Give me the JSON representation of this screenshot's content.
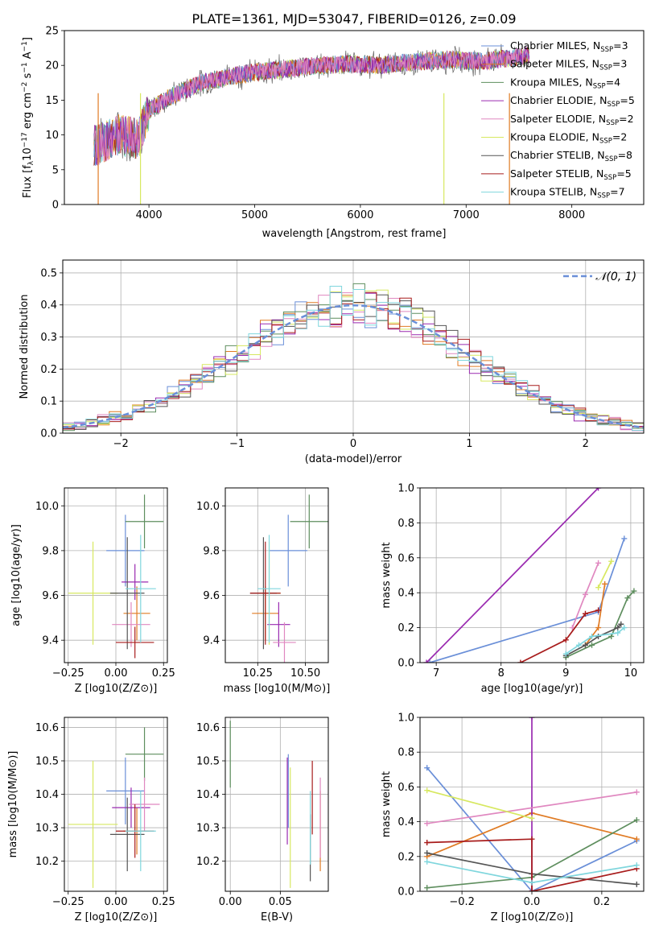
{
  "figure_title": "PLATE=1361, MJD=53047, FIBERID=0126, z=0.09",
  "colors": [
    "#6a8fd8",
    "#e07b24",
    "#5e8e5e",
    "#9a2ab0",
    "#e088c0",
    "#d7e860",
    "#555555",
    "#a81c1c",
    "#7fd6dd"
  ],
  "chart_data": [
    {
      "id": "spectrum",
      "type": "line",
      "title": "PLATE=1361, MJD=53047, FIBERID=0126, z=0.09",
      "xlabel": "wavelength [Angstrom, rest frame]",
      "ylabel_parts": [
        "Flux [f",
        "λ",
        "10",
        "−17",
        " erg cm",
        "−2",
        " s",
        "−1",
        " A",
        "−1",
        "]"
      ],
      "xlim": [
        3200,
        8680
      ],
      "ylim": [
        0,
        25
      ],
      "xticks": [
        4000,
        5000,
        6000,
        7000,
        8000
      ],
      "xtick_labels": [
        "4000",
        "5000",
        "6000",
        "7000",
        "8000"
      ],
      "yticks": [
        0,
        5,
        10,
        15,
        20,
        25
      ],
      "ytick_labels": [
        "0",
        "5",
        "10",
        "15",
        "20",
        "25"
      ],
      "grid": false,
      "legend_placement": "top-right",
      "continuum_x": [
        3500,
        3700,
        3900,
        4000,
        4200,
        4500,
        4800,
        5000,
        5300,
        5600,
        5900,
        6200,
        6500,
        6800,
        7100,
        7400,
        7600
      ],
      "continuum_y": [
        8.5,
        10,
        9.5,
        13.5,
        15.5,
        17.5,
        18.5,
        19,
        19.5,
        20,
        20.2,
        20,
        20.5,
        20.8,
        20.6,
        21,
        21.5
      ],
      "series": [
        {
          "label_main": "Chabrier MILES, N",
          "label_sub": "SSP",
          "label_tail": "=3"
        },
        {
          "label_main": "Salpeter MILES, N",
          "label_sub": "SSP",
          "label_tail": "=3"
        },
        {
          "label_main": "Kroupa MILES, N",
          "label_sub": "SSP",
          "label_tail": "=4"
        },
        {
          "label_main": "Chabrier ELODIE, N",
          "label_sub": "SSP",
          "label_tail": "=5"
        },
        {
          "label_main": "Salpeter ELODIE, N",
          "label_sub": "SSP",
          "label_tail": "=2"
        },
        {
          "label_main": "Kroupa ELODIE, N",
          "label_sub": "SSP",
          "label_tail": "=2"
        },
        {
          "label_main": "Chabrier STELIB, N",
          "label_sub": "SSP",
          "label_tail": "=8"
        },
        {
          "label_main": "Salpeter STELIB, N",
          "label_sub": "SSP",
          "label_tail": "=5"
        },
        {
          "label_main": "Kroupa STELIB, N",
          "label_sub": "SSP",
          "label_tail": "=7"
        }
      ]
    },
    {
      "id": "residuals",
      "type": "bar",
      "xlabel": "(data-model)/error",
      "ylabel": "Normed distribution",
      "xlim": [
        -2.5,
        2.5
      ],
      "ylim": [
        0,
        0.54
      ],
      "xticks": [
        -2,
        -1,
        0,
        1,
        2
      ],
      "xtick_labels": [
        "−2",
        "−1",
        "0",
        "1",
        "2"
      ],
      "yticks": [
        0,
        0.1,
        0.2,
        0.3,
        0.4,
        0.5
      ],
      "ytick_labels": [
        "0.0",
        "0.1",
        "0.2",
        "0.3",
        "0.4",
        "0.5"
      ],
      "grid": true,
      "bin_width": 0.1,
      "legend_placement": "top-right",
      "legend_label": "𝒩(0, 1)"
    },
    {
      "id": "age_vs_Z",
      "type": "scatter",
      "xlabel": "Z [log10(Z/Z⊙)]",
      "ylabel": "age  [log10(age/yr)]",
      "xlim": [
        -0.27,
        0.27
      ],
      "ylim": [
        9.3,
        10.08
      ],
      "xticks": [
        -0.25,
        0,
        0.25
      ],
      "xtick_labels": [
        "−0.25",
        "0.00",
        "0.25"
      ],
      "yticks": [
        9.4,
        9.6,
        9.8,
        10.0
      ],
      "ytick_labels": [
        "9.4",
        "9.6",
        "9.8",
        "10.0"
      ],
      "grid": true,
      "points": [
        {
          "x": 0.05,
          "y": 9.8,
          "xerr": 0.1,
          "yerr": 0.16
        },
        {
          "x": 0.11,
          "y": 9.52,
          "xerr": 0.07,
          "yerr": 0.12
        },
        {
          "x": 0.15,
          "y": 9.93,
          "xerr": 0.1,
          "yerr": 0.12
        },
        {
          "x": 0.1,
          "y": 9.66,
          "xerr": 0.07,
          "yerr": 0.08
        },
        {
          "x": 0.08,
          "y": 9.47,
          "xerr": 0.1,
          "yerr": 0.1
        },
        {
          "x": -0.12,
          "y": 9.61,
          "xerr": 0.13,
          "yerr": 0.23
        },
        {
          "x": 0.06,
          "y": 9.61,
          "xerr": 0.09,
          "yerr": 0.25
        },
        {
          "x": 0.1,
          "y": 9.39,
          "xerr": 0.1,
          "yerr": 0.07
        },
        {
          "x": 0.13,
          "y": 9.63,
          "xerr": 0.08,
          "yerr": 0.24
        }
      ]
    },
    {
      "id": "age_vs_mass",
      "type": "scatter",
      "xlabel": "mass [log10(M/M⊙)]",
      "xlim": [
        10.08,
        10.62
      ],
      "ylim": [
        9.3,
        10.08
      ],
      "xticks": [
        10.25,
        10.5
      ],
      "xtick_labels": [
        "10.25",
        "10.50"
      ],
      "yticks": [
        9.4,
        9.6,
        9.8,
        10.0
      ],
      "ytick_labels": [
        "9.4",
        "9.6",
        "9.8",
        "10.0"
      ],
      "grid": true,
      "points": [
        {
          "x": 10.41,
          "y": 9.8,
          "xerr": 0.1,
          "yerr": 0.16
        },
        {
          "x": 10.29,
          "y": 9.52,
          "xerr": 0.07,
          "yerr": 0.12
        },
        {
          "x": 10.52,
          "y": 9.93,
          "xerr": 0.1,
          "yerr": 0.12
        },
        {
          "x": 10.36,
          "y": 9.47,
          "xerr": 0.06,
          "yerr": 0.1
        },
        {
          "x": 10.39,
          "y": 9.39,
          "xerr": 0.06,
          "yerr": 0.09
        },
        {
          "x": 10.31,
          "y": 9.61,
          "xerr": 0.06,
          "yerr": 0.23
        },
        {
          "x": 10.28,
          "y": 9.61,
          "xerr": 0.07,
          "yerr": 0.25
        },
        {
          "x": 10.29,
          "y": 9.61,
          "xerr": 0.08,
          "yerr": 0.23
        },
        {
          "x": 10.31,
          "y": 9.63,
          "xerr": 0.06,
          "yerr": 0.24
        }
      ]
    },
    {
      "id": "weight_vs_age",
      "type": "line",
      "xlabel": "age  [log10(age/yr)]",
      "ylabel": "mass weight",
      "xlim": [
        6.75,
        10.2
      ],
      "ylim": [
        0,
        1
      ],
      "xticks": [
        7,
        8,
        9,
        10
      ],
      "xtick_labels": [
        "7",
        "8",
        "9",
        "10"
      ],
      "yticks": [
        0,
        0.2,
        0.4,
        0.6,
        0.8,
        1.0
      ],
      "ytick_labels": [
        "0.0",
        "0.2",
        "0.4",
        "0.6",
        "0.8",
        "1.0"
      ],
      "grid": true,
      "series": [
        {
          "x": [
            6.9,
            9.5,
            9.9
          ],
          "y": [
            0.0,
            0.29,
            0.71
          ]
        },
        {
          "x": [
            9.3,
            9.5,
            9.6
          ],
          "y": [
            0.1,
            0.2,
            0.45
          ]
        },
        {
          "x": [
            9.0,
            9.4,
            9.7,
            9.95,
            10.05
          ],
          "y": [
            0.03,
            0.1,
            0.15,
            0.37,
            0.41
          ]
        },
        {
          "x": [
            6.85,
            9.5
          ],
          "y": [
            0.0,
            1.0
          ]
        },
        {
          "x": [
            9.1,
            9.3,
            9.5
          ],
          "y": [
            0.2,
            0.39,
            0.57
          ]
        },
        {
          "x": [
            9.5,
            9.7
          ],
          "y": [
            0.43,
            0.58
          ]
        },
        {
          "x": [
            9.0,
            9.3,
            9.5,
            9.8,
            9.85
          ],
          "y": [
            0.04,
            0.1,
            0.15,
            0.2,
            0.22
          ]
        },
        {
          "x": [
            8.3,
            9.0,
            9.3,
            9.5
          ],
          "y": [
            0.0,
            0.13,
            0.28,
            0.3
          ]
        },
        {
          "x": [
            9.0,
            9.2,
            9.4,
            9.8,
            9.9
          ],
          "y": [
            0.05,
            0.1,
            0.15,
            0.17,
            0.2
          ]
        }
      ]
    },
    {
      "id": "mass_vs_Z",
      "type": "scatter",
      "xlabel": "Z [log10(Z/Z⊙)]",
      "ylabel": "mass [log10(M/M⊙)]",
      "xlim": [
        -0.27,
        0.27
      ],
      "ylim": [
        10.11,
        10.63
      ],
      "xticks": [
        -0.25,
        0,
        0.25
      ],
      "xtick_labels": [
        "−0.25",
        "0.00",
        "0.25"
      ],
      "yticks": [
        10.2,
        10.3,
        10.4,
        10.5,
        10.6
      ],
      "ytick_labels": [
        "10.2",
        "10.3",
        "10.4",
        "10.5",
        "10.6"
      ],
      "grid": true,
      "points": [
        {
          "x": 0.05,
          "y": 10.41,
          "xerr": 0.1,
          "yerr": 0.1
        },
        {
          "x": 0.11,
          "y": 10.29,
          "xerr": 0.07,
          "yerr": 0.07
        },
        {
          "x": 0.15,
          "y": 10.52,
          "xerr": 0.1,
          "yerr": 0.08
        },
        {
          "x": 0.08,
          "y": 10.36,
          "xerr": 0.1,
          "yerr": 0.06
        },
        {
          "x": 0.15,
          "y": 10.37,
          "xerr": 0.08,
          "yerr": 0.08
        },
        {
          "x": -0.12,
          "y": 10.31,
          "xerr": 0.13,
          "yerr": 0.19
        },
        {
          "x": 0.06,
          "y": 10.28,
          "xerr": 0.09,
          "yerr": 0.11
        },
        {
          "x": 0.1,
          "y": 10.29,
          "xerr": 0.1,
          "yerr": 0.08
        },
        {
          "x": 0.13,
          "y": 10.29,
          "xerr": 0.08,
          "yerr": 0.12
        }
      ]
    },
    {
      "id": "mass_vs_ebv",
      "type": "scatter",
      "xlabel": "E(B-V)",
      "xlim": [
        -0.005,
        0.098
      ],
      "ylim": [
        10.11,
        10.63
      ],
      "xticks": [
        0,
        0.05
      ],
      "xtick_labels": [
        "0.00",
        "0.05"
      ],
      "yticks": [
        10.2,
        10.3,
        10.4,
        10.5,
        10.6
      ],
      "ytick_labels": [
        "10.2",
        "10.3",
        "10.4",
        "10.5",
        "10.6"
      ],
      "grid": true,
      "points": [
        {
          "x": 0.058,
          "y": 10.41,
          "xerr": 0,
          "yerr": 0.11
        },
        {
          "x": 0.09,
          "y": 10.29,
          "xerr": 0,
          "yerr": 0.12
        },
        {
          "x": 0.0,
          "y": 10.52,
          "xerr": 0,
          "yerr": 0.1
        },
        {
          "x": 0.057,
          "y": 10.38,
          "xerr": 0,
          "yerr": 0.13
        },
        {
          "x": 0.09,
          "y": 10.33,
          "xerr": 0,
          "yerr": 0.12
        },
        {
          "x": 0.06,
          "y": 10.3,
          "xerr": 0,
          "yerr": 0.18
        },
        {
          "x": 0.08,
          "y": 10.24,
          "xerr": 0,
          "yerr": 0.1
        },
        {
          "x": 0.082,
          "y": 10.39,
          "xerr": 0,
          "yerr": 0.11
        },
        {
          "x": 0.08,
          "y": 10.3,
          "xerr": 0,
          "yerr": 0.11
        }
      ]
    },
    {
      "id": "weight_vs_Z",
      "type": "line",
      "xlabel": "Z [log10(Z/Z⊙)]",
      "ylabel": "mass weight",
      "xlim": [
        -0.32,
        0.32
      ],
      "ylim": [
        0,
        1
      ],
      "xticks": [
        -0.2,
        0,
        0.2
      ],
      "xtick_labels": [
        "−0.2",
        "0.0",
        "0.2"
      ],
      "yticks": [
        0,
        0.2,
        0.4,
        0.6,
        0.8,
        1.0
      ],
      "ytick_labels": [
        "0.0",
        "0.2",
        "0.4",
        "0.6",
        "0.8",
        "1.0"
      ],
      "grid": true,
      "series": [
        {
          "x": [
            -0.3,
            0.0,
            0.3
          ],
          "y": [
            0.71,
            0.0,
            0.29
          ]
        },
        {
          "x": [
            -0.3,
            0.0,
            0.3
          ],
          "y": [
            0.2,
            0.45,
            0.3
          ]
        },
        {
          "x": [
            -0.3,
            0.0,
            0.3
          ],
          "y": [
            0.02,
            0.08,
            0.41
          ]
        },
        {
          "x": [
            0.0,
            0.0
          ],
          "y": [
            0.0,
            1.0
          ]
        },
        {
          "x": [
            -0.3,
            0.3
          ],
          "y": [
            0.39,
            0.57
          ]
        },
        {
          "x": [
            -0.3,
            0.0
          ],
          "y": [
            0.58,
            0.42
          ]
        },
        {
          "x": [
            -0.3,
            0.0,
            0.3
          ],
          "y": [
            0.22,
            0.1,
            0.04
          ]
        },
        {
          "x": [
            -0.3,
            0.0,
            0.0,
            0.3
          ],
          "y": [
            0.28,
            0.3,
            0.0,
            0.13
          ]
        },
        {
          "x": [
            -0.3,
            0.0,
            0.3
          ],
          "y": [
            0.17,
            0.05,
            0.15
          ]
        }
      ]
    }
  ]
}
